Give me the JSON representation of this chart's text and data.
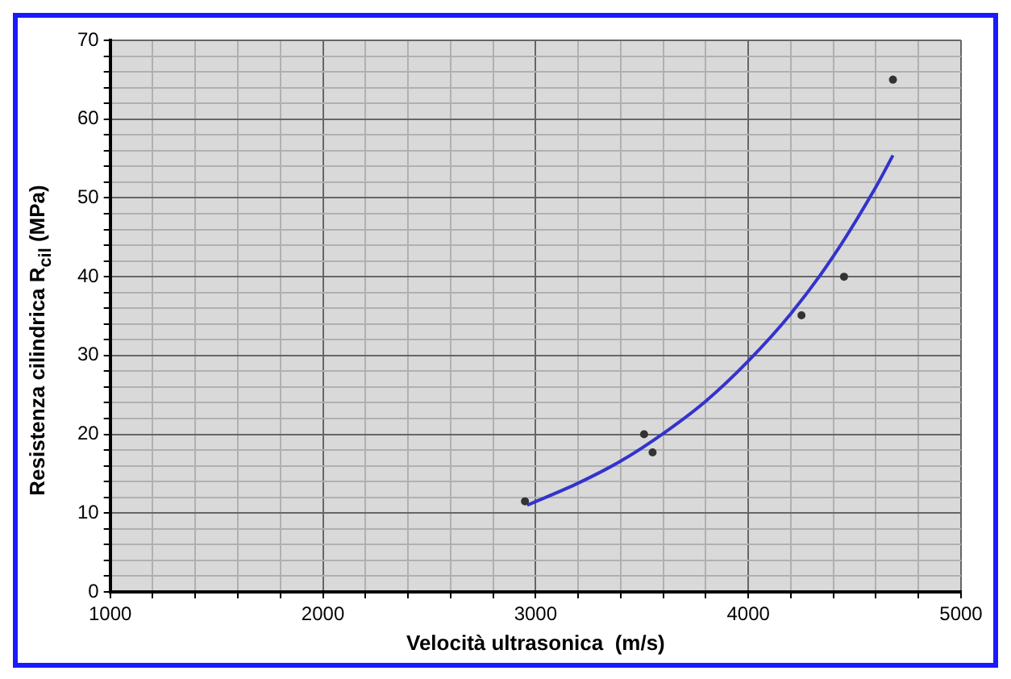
{
  "chart_data": {
    "type": "scatter",
    "xlabel": "Velocità ultrasonica  (m/s)",
    "ylabel": "Resistenza cilindrica R$_{cil}$ (MPa)",
    "xlim": [
      1000,
      5000
    ],
    "ylim": [
      0,
      70
    ],
    "xticks": [
      1000,
      {
        "value": 1200,
        "label": null
      },
      {
        "value": 1400,
        "label": null
      },
      {
        "value": 1600,
        "label": null
      },
      {
        "value": 1800,
        "label": null
      },
      2000,
      {
        "value": 2200,
        "label": null
      },
      {
        "value": 2400,
        "label": null
      },
      {
        "value": 2600,
        "label": null
      },
      {
        "value": 2800,
        "label": null
      },
      3000,
      {
        "value": 3200,
        "label": null
      },
      {
        "value": 3400,
        "label": null
      },
      {
        "value": 3600,
        "label": null
      },
      {
        "value": 3800,
        "label": null
      },
      4000,
      {
        "value": 4200,
        "label": null
      },
      {
        "value": 4400,
        "label": null
      },
      {
        "value": 4600,
        "label": null
      },
      {
        "value": 4800,
        "label": null
      },
      5000
    ],
    "yticks": [
      0,
      {
        "value": 2,
        "label": null
      },
      {
        "value": 4,
        "label": null
      },
      {
        "value": 6,
        "label": null
      },
      {
        "value": 8,
        "label": null
      },
      10,
      {
        "value": 12,
        "label": null
      },
      {
        "value": 14,
        "label": null
      },
      {
        "value": 16,
        "label": null
      },
      {
        "value": 18,
        "label": null
      },
      20,
      {
        "value": 22,
        "label": null
      },
      {
        "value": 24,
        "label": null
      },
      {
        "value": 26,
        "label": null
      },
      {
        "value": 28,
        "label": null
      },
      30,
      {
        "value": 32,
        "label": null
      },
      {
        "value": 34,
        "label": null
      },
      {
        "value": 36,
        "label": null
      },
      {
        "value": 38,
        "label": null
      },
      40,
      {
        "value": 42,
        "label": null
      },
      {
        "value": 44,
        "label": null
      },
      {
        "value": 46,
        "label": null
      },
      {
        "value": 48,
        "label": null
      },
      50,
      {
        "value": 52,
        "label": null
      },
      {
        "value": 54,
        "label": null
      },
      {
        "value": 56,
        "label": null
      },
      {
        "value": 58,
        "label": null
      },
      60,
      {
        "value": 62,
        "label": null
      },
      {
        "value": 64,
        "label": null
      },
      {
        "value": 66,
        "label": null
      },
      {
        "value": 68,
        "label": null
      },
      70
    ],
    "grid": true,
    "legend": false,
    "series": [
      {
        "color": "#333333",
        "marker": "circle",
        "x": [
          2950,
          3510,
          3550,
          4250,
          4450,
          4680
        ],
        "values": [
          11.5,
          20,
          17.7,
          35.1,
          40,
          65
        ]
      },
      {
        "type": "line",
        "color": "#3333cc",
        "marker": "none",
        "line_style": "solid",
        "x": [
          2960,
          3200,
          3400,
          3600,
          3800,
          4000,
          4200,
          4400,
          4600,
          4680
        ],
        "values": [
          11.0,
          13.8,
          16.6,
          20.1,
          24.2,
          29.3,
          35.3,
          42.6,
          51.4,
          55.4
        ]
      }
    ]
  }
}
